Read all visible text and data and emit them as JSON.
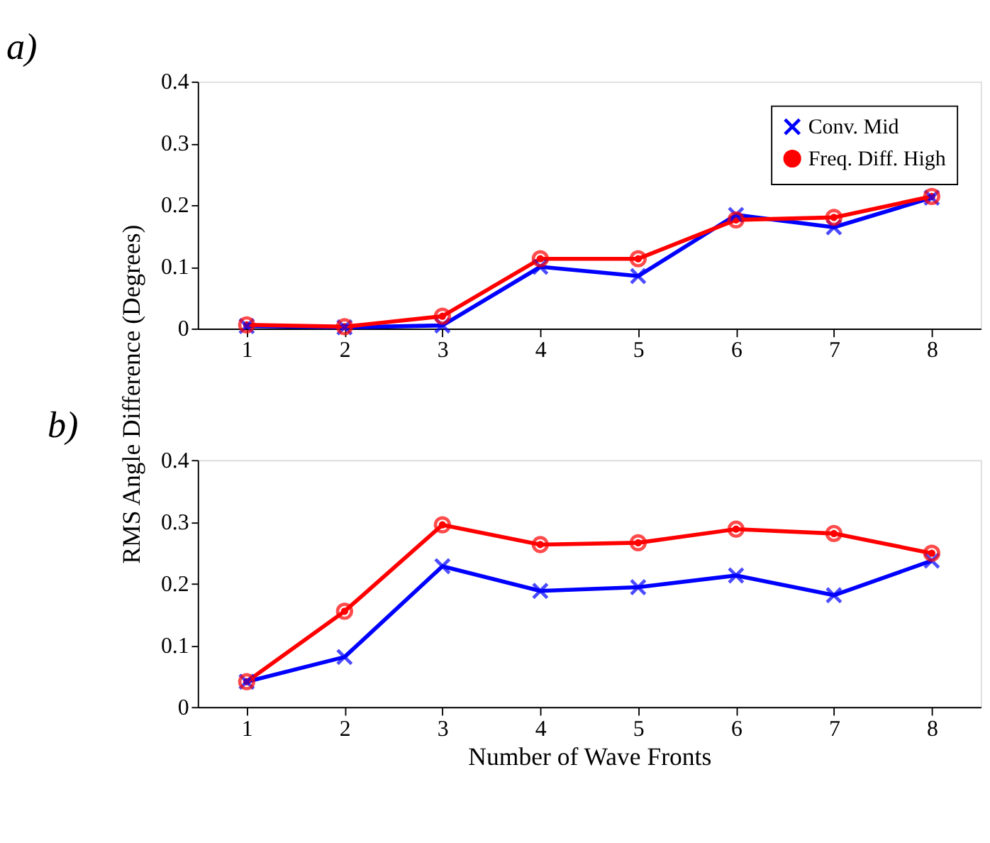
{
  "chart_data": [
    {
      "type": "line",
      "title": "a)",
      "ylabel": "RMS Angle Difference (Degrees)",
      "x": [
        1,
        2,
        3,
        4,
        5,
        6,
        7,
        8
      ],
      "xlim": [
        0.5,
        8.5
      ],
      "xticks": [
        1,
        2,
        3,
        4,
        5,
        6,
        7,
        8
      ],
      "ylim": [
        0,
        0.4
      ],
      "yticks": [
        0,
        0.1,
        0.2,
        0.3,
        0.4
      ],
      "grid": false,
      "legend": "top right",
      "line_style": "solid",
      "series": [
        {
          "name": "Conv. Mid",
          "color": "#0000ff",
          "marker": "cross",
          "values": [
            0.004,
            0.002,
            0.005,
            0.1,
            0.085,
            0.184,
            0.164,
            0.212
          ]
        },
        {
          "name": "Freq. Diff. High",
          "color": "#ff0000",
          "marker": "circle",
          "values": [
            0.006,
            0.003,
            0.02,
            0.113,
            0.113,
            0.176,
            0.18,
            0.214
          ]
        }
      ]
    },
    {
      "type": "line",
      "title": "b)",
      "xlabel": "Number of Wave Fronts",
      "x": [
        1,
        2,
        3,
        4,
        5,
        6,
        7,
        8
      ],
      "xlim": [
        0.5,
        8.5
      ],
      "xticks": [
        1,
        2,
        3,
        4,
        5,
        6,
        7,
        8
      ],
      "ylim": [
        0,
        0.4
      ],
      "yticks": [
        0,
        0.1,
        0.2,
        0.3,
        0.4
      ],
      "grid": false,
      "legend": false,
      "line_style": "solid",
      "series": [
        {
          "name": "Conv. Mid",
          "color": "#0000ff",
          "marker": "cross",
          "values": [
            0.041,
            0.081,
            0.228,
            0.188,
            0.194,
            0.213,
            0.181,
            0.237
          ]
        },
        {
          "name": "Freq. Diff. High",
          "color": "#ff0000",
          "marker": "circle",
          "values": [
            0.041,
            0.155,
            0.295,
            0.263,
            0.266,
            0.288,
            0.281,
            0.249
          ]
        }
      ]
    }
  ]
}
